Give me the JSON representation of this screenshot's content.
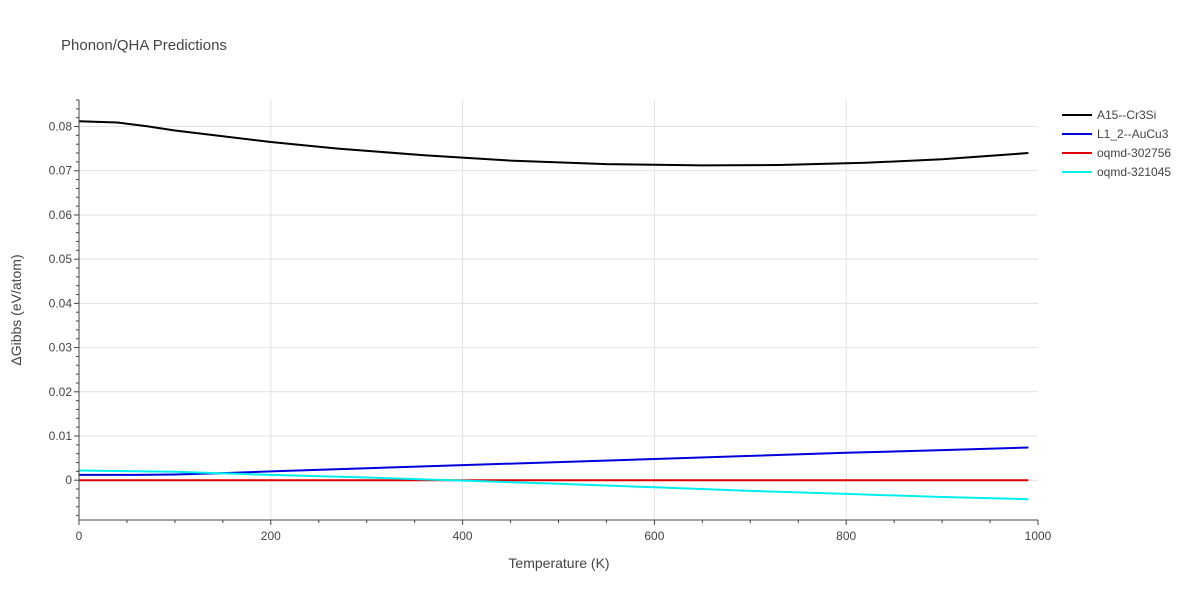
{
  "chart_data": {
    "type": "line",
    "title": "Phonon/QHA Predictions",
    "xlabel": "Temperature (K)",
    "ylabel": "ΔGibbs (eV/atom)",
    "xlim": [
      0,
      1000
    ],
    "ylim": [
      -0.009,
      0.086
    ],
    "x_ticks": [
      0,
      200,
      400,
      600,
      800,
      1000
    ],
    "x_tick_labels": [
      "0",
      "200",
      "400",
      "600",
      "800",
      "1000"
    ],
    "y_ticks": [
      0,
      0.01,
      0.02,
      0.03,
      0.04,
      0.05,
      0.06,
      0.07,
      0.08
    ],
    "y_tick_labels": [
      "0",
      "0.01",
      "0.02",
      "0.03",
      "0.04",
      "0.05",
      "0.06",
      "0.07",
      "0.08"
    ],
    "grid": true,
    "legend_position": "top-right",
    "series": [
      {
        "name": "A15--Cr3Si",
        "color": "#000000",
        "x": [
          0,
          40,
          70,
          100,
          150,
          200,
          270,
          360,
          450,
          550,
          650,
          730,
          820,
          900,
          990
        ],
        "y": [
          0.0812,
          0.0809,
          0.0801,
          0.0791,
          0.0778,
          0.0765,
          0.075,
          0.0735,
          0.0723,
          0.0715,
          0.0712,
          0.0713,
          0.0718,
          0.0726,
          0.074
        ]
      },
      {
        "name": "L1_2--AuCu3",
        "color": "#0000dd",
        "x": [
          0,
          60,
          100,
          150,
          200,
          300,
          400,
          500,
          600,
          700,
          800,
          900,
          990
        ],
        "y": [
          0.0012,
          0.0012,
          0.0013,
          0.0016,
          0.002,
          0.0027,
          0.0034,
          0.0041,
          0.0048,
          0.0055,
          0.0062,
          0.0068,
          0.0074
        ]
      },
      {
        "name": "oqmd-302756",
        "color": "#dd0000",
        "x": [
          0,
          990
        ],
        "y": [
          0,
          0
        ]
      },
      {
        "name": "oqmd-321045",
        "color": "#00eeee",
        "x": [
          0,
          100,
          200,
          300,
          400,
          500,
          600,
          700,
          800,
          900,
          990
        ],
        "y": [
          0.0022,
          0.0019,
          0.0012,
          0.0006,
          -0.0001,
          -0.0008,
          -0.0016,
          -0.0024,
          -0.0031,
          -0.0038,
          -0.0043
        ]
      }
    ]
  }
}
